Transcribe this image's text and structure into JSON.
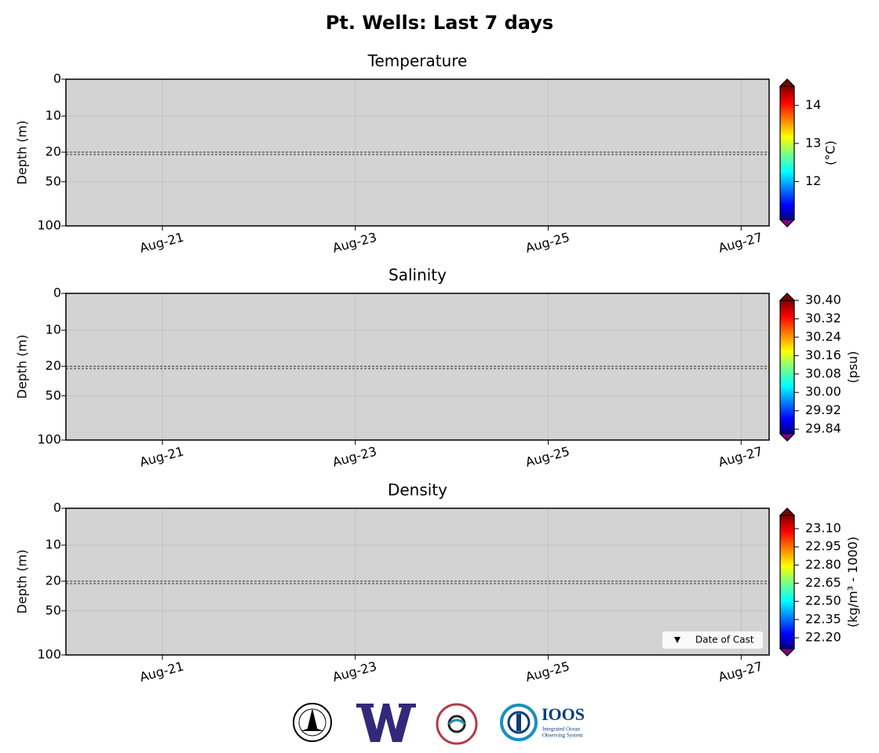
{
  "title": "Pt. Wells: Last 7 days",
  "chart_data": [
    {
      "type": "heatmap",
      "title": "Temperature",
      "ylabel": "Depth (m)",
      "xlim": [
        20,
        27.29
      ],
      "xticks": [
        {
          "value": 21,
          "label": "Aug-21"
        },
        {
          "value": 23,
          "label": "Aug-23"
        },
        {
          "value": 25,
          "label": "Aug-25"
        },
        {
          "value": 27,
          "label": "Aug-27"
        }
      ],
      "ylim": [
        0,
        100
      ],
      "ybreak": 20,
      "yticks": [
        0,
        10,
        20,
        50,
        100
      ],
      "grid": true,
      "background": "#d3d3d3",
      "colorbar": {
        "label": "(°C)",
        "colormap": "jet",
        "extend": "both",
        "lim": [
          11.0,
          14.5
        ],
        "ticks": [
          12,
          13,
          14
        ]
      }
    },
    {
      "type": "heatmap",
      "title": "Salinity",
      "ylabel": "Depth (m)",
      "xlim": [
        20,
        27.29
      ],
      "xticks": [
        {
          "value": 21,
          "label": "Aug-21"
        },
        {
          "value": 23,
          "label": "Aug-23"
        },
        {
          "value": 25,
          "label": "Aug-25"
        },
        {
          "value": 27,
          "label": "Aug-27"
        }
      ],
      "ylim": [
        0,
        100
      ],
      "ybreak": 20,
      "yticks": [
        0,
        10,
        20,
        50,
        100
      ],
      "grid": true,
      "background": "#d3d3d3",
      "colorbar": {
        "label": "(psu)",
        "colormap": "jet",
        "extend": "both",
        "lim": [
          29.82,
          30.4
        ],
        "ticks": [
          {
            "value": 30.4,
            "label": "30.40"
          },
          30.32,
          30.24,
          30.16,
          30.08,
          {
            "value": 30.0,
            "label": "30.00"
          },
          29.92,
          29.84
        ]
      }
    },
    {
      "type": "heatmap",
      "title": "Density",
      "ylabel": "Depth (m)",
      "xlim": [
        20,
        27.29
      ],
      "xticks": [
        {
          "value": 21,
          "label": "Aug-21"
        },
        {
          "value": 23,
          "label": "Aug-23"
        },
        {
          "value": 25,
          "label": "Aug-25"
        },
        {
          "value": 27,
          "label": "Aug-27"
        }
      ],
      "ylim": [
        0,
        100
      ],
      "ybreak": 20,
      "yticks": [
        0,
        10,
        20,
        50,
        100
      ],
      "grid": true,
      "background": "#d3d3d3",
      "legend": {
        "labels": [
          "Date of Cast"
        ],
        "loc": "lower right",
        "marker": "v",
        "color": "#000000"
      },
      "colorbar": {
        "label": "(kg/m³ - 1000)",
        "colormap": "jet",
        "extend": "both",
        "lim": [
          22.11,
          23.21
        ],
        "ticks": [
          {
            "value": 23.1,
            "label": "23.10"
          },
          22.95,
          {
            "value": 22.8,
            "label": "22.80"
          },
          22.65,
          {
            "value": 22.5,
            "label": "22.50"
          },
          22.35,
          {
            "value": 22.2,
            "label": "22.20"
          }
        ]
      }
    }
  ],
  "logos": {
    "ioos": "IOOS",
    "ioos_sub1": "Integrated Ocean",
    "ioos_sub2": "Observing System"
  }
}
